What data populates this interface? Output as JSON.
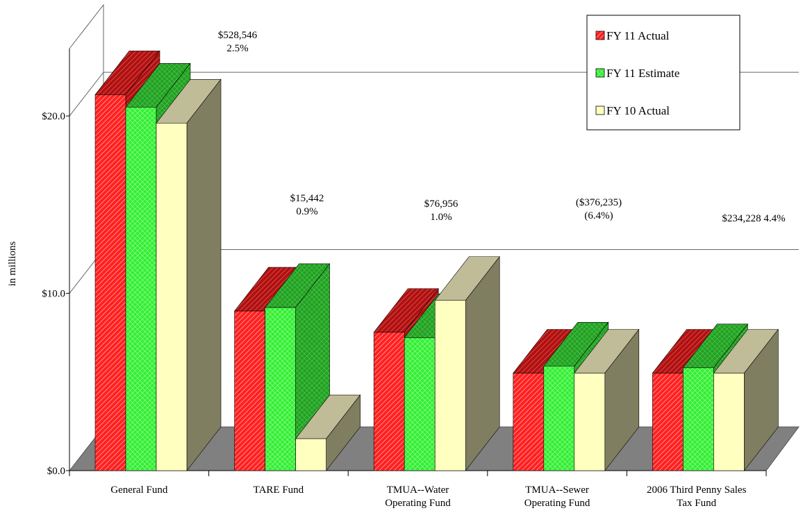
{
  "chart_data": {
    "type": "bar3d",
    "y_label": "in millions",
    "categories": [
      "General Fund",
      "TARE Fund",
      "TMUA--Water\nOperating Fund",
      "TMUA--Sewer\nOperating Fund",
      "2006 Third Penny Sales\nTax Fund"
    ],
    "series": [
      {
        "name": "FY 11 Actual",
        "color": "#ff2020",
        "values": [
          21.2,
          9.0,
          7.8,
          5.5,
          5.5
        ]
      },
      {
        "name": "FY 11 Estimate",
        "color": "#33ee33",
        "values": [
          20.5,
          9.2,
          7.5,
          5.9,
          5.8
        ]
      },
      {
        "name": "FY 10 Actual",
        "color": "#ffffc0",
        "values": [
          19.6,
          1.8,
          9.6,
          5.5,
          5.5
        ]
      }
    ],
    "annotations": [
      "$528,546\n2.5%",
      "$15,442\n0.9%",
      "$76,956\n1.0%",
      "($376,235)\n(6.4%)",
      "$234,228   4.4%"
    ],
    "ylim": [
      0,
      23.8
    ],
    "yticks": [
      {
        "value": 0,
        "label": "$0.0"
      },
      {
        "value": 10,
        "label": "$10.0"
      },
      {
        "value": 20,
        "label": "$20.0"
      }
    ],
    "grid": true,
    "legend": "top-right"
  }
}
